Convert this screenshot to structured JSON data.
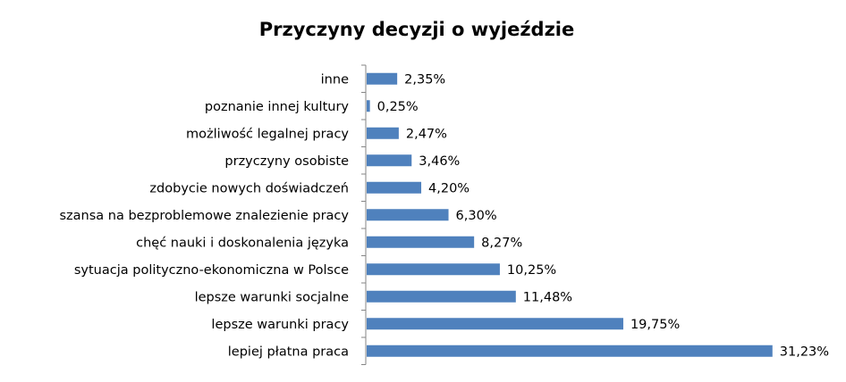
{
  "chart_data": {
    "type": "bar",
    "orientation": "horizontal",
    "title": "Przyczyny decyzji o wyjeździe",
    "categories": [
      "inne",
      "poznanie innej kultury",
      "możliwość legalnej pracy",
      "przyczyny osobiste",
      "zdobycie nowych doświadczeń",
      "szansa na bezproblemowe znalezienie pracy",
      "chęć nauki i doskonalenia języka",
      "sytuacja polityczno-ekonomiczna w Polsce",
      "lepsze warunki socjalne",
      "lepsze warunki pracy",
      "lepiej płatna praca"
    ],
    "values": [
      2.35,
      0.25,
      2.47,
      3.46,
      4.2,
      6.3,
      8.27,
      10.25,
      11.48,
      19.75,
      31.23
    ],
    "value_labels": [
      "2,35%",
      "0,25%",
      "2,47%",
      "3,46%",
      "4,20%",
      "6,30%",
      "8,27%",
      "10,25%",
      "11,48%",
      "19,75%",
      "31,23%"
    ],
    "xlim": [
      0,
      35
    ],
    "xlabel": "",
    "ylabel": "",
    "grid": false,
    "legend": "none",
    "bar_color": "#4F81BD"
  }
}
